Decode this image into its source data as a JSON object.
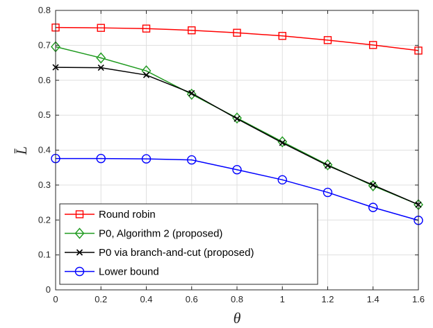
{
  "chart_data": {
    "type": "line",
    "xlabel": "θ",
    "ylabel": "L̄",
    "xlim": [
      0,
      1.6
    ],
    "ylim": [
      0,
      0.8
    ],
    "x_ticks": [
      "0",
      "0.2",
      "0.4",
      "0.6",
      "0.8",
      "1",
      "1.2",
      "1.4",
      "1.6"
    ],
    "y_ticks": [
      "0",
      "0.1",
      "0.2",
      "0.3",
      "0.4",
      "0.5",
      "0.6",
      "0.7",
      "0.8"
    ],
    "grid": true,
    "legend_position": "bottom-left",
    "x": [
      0,
      0.2,
      0.4,
      0.6,
      0.8,
      1.0,
      1.2,
      1.4,
      1.6
    ],
    "series": [
      {
        "name": "Round robin",
        "color": "#ff0000",
        "marker": "square",
        "values": [
          0.751,
          0.75,
          0.748,
          0.743,
          0.736,
          0.727,
          0.715,
          0.701,
          0.685
        ]
      },
      {
        "name": "P0, Algorithm 2 (proposed)",
        "color": "#1f9a1f",
        "marker": "diamond",
        "values": [
          0.696,
          0.664,
          0.627,
          0.56,
          0.492,
          0.424,
          0.358,
          0.298,
          0.244
        ]
      },
      {
        "name": "P0 via branch-and-cut (proposed)",
        "color": "#000000",
        "marker": "x",
        "values": [
          0.637,
          0.636,
          0.615,
          0.563,
          0.49,
          0.421,
          0.356,
          0.3,
          0.244
        ]
      },
      {
        "name": "Lower bound",
        "color": "#0000ff",
        "marker": "circle",
        "values": [
          0.376,
          0.376,
          0.375,
          0.372,
          0.344,
          0.315,
          0.279,
          0.236,
          0.199
        ]
      }
    ]
  }
}
